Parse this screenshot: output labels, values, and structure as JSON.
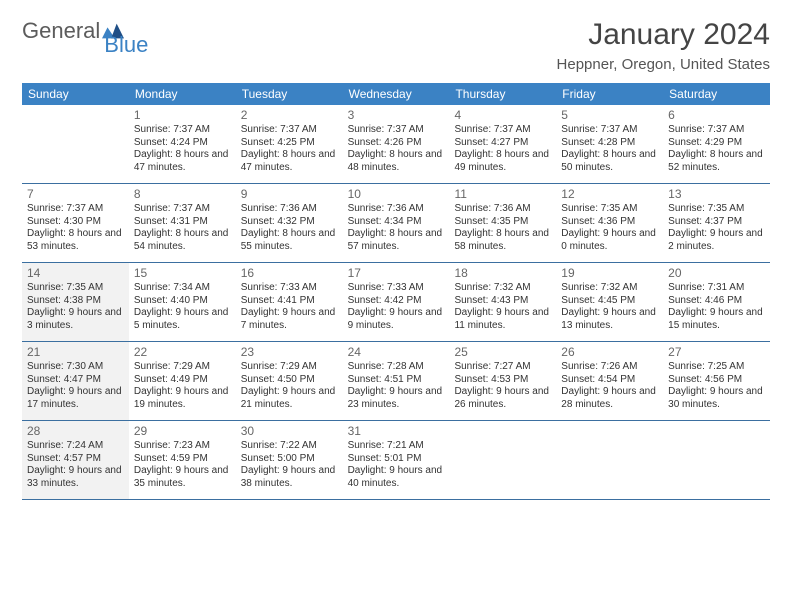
{
  "brand": {
    "name1": "General",
    "name2": "Blue"
  },
  "title": "January 2024",
  "location": "Heppner, Oregon, United States",
  "colors": {
    "headerBar": "#3b82c4",
    "weekDivider": "#3b6fa0",
    "shadedCell": "#f2f2f2",
    "text": "#333333",
    "brandGray": "#5c5c5c",
    "brandBlue": "#3b82c4"
  },
  "typography": {
    "title_fontsize": 30,
    "location_fontsize": 15,
    "dayhead_fontsize": 12,
    "daynum_fontsize": 12,
    "info_fontsize": 10
  },
  "dayNames": [
    "Sunday",
    "Monday",
    "Tuesday",
    "Wednesday",
    "Thursday",
    "Friday",
    "Saturday"
  ],
  "weeks": [
    [
      {
        "n": "",
        "sr": "",
        "ss": "",
        "dl": ""
      },
      {
        "n": "1",
        "sr": "Sunrise: 7:37 AM",
        "ss": "Sunset: 4:24 PM",
        "dl": "Daylight: 8 hours and 47 minutes."
      },
      {
        "n": "2",
        "sr": "Sunrise: 7:37 AM",
        "ss": "Sunset: 4:25 PM",
        "dl": "Daylight: 8 hours and 47 minutes."
      },
      {
        "n": "3",
        "sr": "Sunrise: 7:37 AM",
        "ss": "Sunset: 4:26 PM",
        "dl": "Daylight: 8 hours and 48 minutes."
      },
      {
        "n": "4",
        "sr": "Sunrise: 7:37 AM",
        "ss": "Sunset: 4:27 PM",
        "dl": "Daylight: 8 hours and 49 minutes."
      },
      {
        "n": "5",
        "sr": "Sunrise: 7:37 AM",
        "ss": "Sunset: 4:28 PM",
        "dl": "Daylight: 8 hours and 50 minutes."
      },
      {
        "n": "6",
        "sr": "Sunrise: 7:37 AM",
        "ss": "Sunset: 4:29 PM",
        "dl": "Daylight: 8 hours and 52 minutes."
      }
    ],
    [
      {
        "n": "7",
        "sr": "Sunrise: 7:37 AM",
        "ss": "Sunset: 4:30 PM",
        "dl": "Daylight: 8 hours and 53 minutes."
      },
      {
        "n": "8",
        "sr": "Sunrise: 7:37 AM",
        "ss": "Sunset: 4:31 PM",
        "dl": "Daylight: 8 hours and 54 minutes."
      },
      {
        "n": "9",
        "sr": "Sunrise: 7:36 AM",
        "ss": "Sunset: 4:32 PM",
        "dl": "Daylight: 8 hours and 55 minutes."
      },
      {
        "n": "10",
        "sr": "Sunrise: 7:36 AM",
        "ss": "Sunset: 4:34 PM",
        "dl": "Daylight: 8 hours and 57 minutes."
      },
      {
        "n": "11",
        "sr": "Sunrise: 7:36 AM",
        "ss": "Sunset: 4:35 PM",
        "dl": "Daylight: 8 hours and 58 minutes."
      },
      {
        "n": "12",
        "sr": "Sunrise: 7:35 AM",
        "ss": "Sunset: 4:36 PM",
        "dl": "Daylight: 9 hours and 0 minutes."
      },
      {
        "n": "13",
        "sr": "Sunrise: 7:35 AM",
        "ss": "Sunset: 4:37 PM",
        "dl": "Daylight: 9 hours and 2 minutes."
      }
    ],
    [
      {
        "n": "14",
        "sr": "Sunrise: 7:35 AM",
        "ss": "Sunset: 4:38 PM",
        "dl": "Daylight: 9 hours and 3 minutes.",
        "shaded": true
      },
      {
        "n": "15",
        "sr": "Sunrise: 7:34 AM",
        "ss": "Sunset: 4:40 PM",
        "dl": "Daylight: 9 hours and 5 minutes."
      },
      {
        "n": "16",
        "sr": "Sunrise: 7:33 AM",
        "ss": "Sunset: 4:41 PM",
        "dl": "Daylight: 9 hours and 7 minutes."
      },
      {
        "n": "17",
        "sr": "Sunrise: 7:33 AM",
        "ss": "Sunset: 4:42 PM",
        "dl": "Daylight: 9 hours and 9 minutes."
      },
      {
        "n": "18",
        "sr": "Sunrise: 7:32 AM",
        "ss": "Sunset: 4:43 PM",
        "dl": "Daylight: 9 hours and 11 minutes."
      },
      {
        "n": "19",
        "sr": "Sunrise: 7:32 AM",
        "ss": "Sunset: 4:45 PM",
        "dl": "Daylight: 9 hours and 13 minutes."
      },
      {
        "n": "20",
        "sr": "Sunrise: 7:31 AM",
        "ss": "Sunset: 4:46 PM",
        "dl": "Daylight: 9 hours and 15 minutes."
      }
    ],
    [
      {
        "n": "21",
        "sr": "Sunrise: 7:30 AM",
        "ss": "Sunset: 4:47 PM",
        "dl": "Daylight: 9 hours and 17 minutes.",
        "shaded": true
      },
      {
        "n": "22",
        "sr": "Sunrise: 7:29 AM",
        "ss": "Sunset: 4:49 PM",
        "dl": "Daylight: 9 hours and 19 minutes."
      },
      {
        "n": "23",
        "sr": "Sunrise: 7:29 AM",
        "ss": "Sunset: 4:50 PM",
        "dl": "Daylight: 9 hours and 21 minutes."
      },
      {
        "n": "24",
        "sr": "Sunrise: 7:28 AM",
        "ss": "Sunset: 4:51 PM",
        "dl": "Daylight: 9 hours and 23 minutes."
      },
      {
        "n": "25",
        "sr": "Sunrise: 7:27 AM",
        "ss": "Sunset: 4:53 PM",
        "dl": "Daylight: 9 hours and 26 minutes."
      },
      {
        "n": "26",
        "sr": "Sunrise: 7:26 AM",
        "ss": "Sunset: 4:54 PM",
        "dl": "Daylight: 9 hours and 28 minutes."
      },
      {
        "n": "27",
        "sr": "Sunrise: 7:25 AM",
        "ss": "Sunset: 4:56 PM",
        "dl": "Daylight: 9 hours and 30 minutes."
      }
    ],
    [
      {
        "n": "28",
        "sr": "Sunrise: 7:24 AM",
        "ss": "Sunset: 4:57 PM",
        "dl": "Daylight: 9 hours and 33 minutes.",
        "shaded": true
      },
      {
        "n": "29",
        "sr": "Sunrise: 7:23 AM",
        "ss": "Sunset: 4:59 PM",
        "dl": "Daylight: 9 hours and 35 minutes."
      },
      {
        "n": "30",
        "sr": "Sunrise: 7:22 AM",
        "ss": "Sunset: 5:00 PM",
        "dl": "Daylight: 9 hours and 38 minutes."
      },
      {
        "n": "31",
        "sr": "Sunrise: 7:21 AM",
        "ss": "Sunset: 5:01 PM",
        "dl": "Daylight: 9 hours and 40 minutes."
      },
      {
        "n": "",
        "sr": "",
        "ss": "",
        "dl": ""
      },
      {
        "n": "",
        "sr": "",
        "ss": "",
        "dl": ""
      },
      {
        "n": "",
        "sr": "",
        "ss": "",
        "dl": ""
      }
    ]
  ]
}
